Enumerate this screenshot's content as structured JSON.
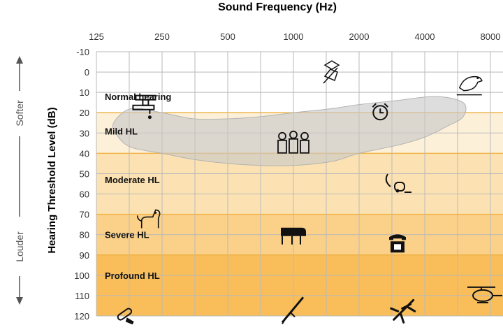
{
  "chart_data": {
    "type": "area",
    "title": "Sound Frequency (Hz)",
    "ylabel": "Hearing Threshold Level (dB)",
    "side_labels": {
      "top": "Softer",
      "bottom": "Louder"
    },
    "x_ticks": [
      "125",
      "250",
      "500",
      "1000",
      "2000",
      "4000",
      "8000"
    ],
    "x_scale": "log2",
    "y_ticks": [
      -10,
      0,
      10,
      20,
      30,
      40,
      50,
      60,
      70,
      80,
      90,
      100,
      110,
      120
    ],
    "ylim": [
      -10,
      120
    ],
    "y_inverted": true,
    "grid": true,
    "bands": [
      {
        "label": "Normal hearing",
        "from": -10,
        "to": 20,
        "color": "#ffffff"
      },
      {
        "label": "Mild HL",
        "from": 20,
        "to": 40,
        "color": "#fdf0d8"
      },
      {
        "label": "Moderate HL",
        "from": 40,
        "to": 70,
        "color": "#fce2b2"
      },
      {
        "label": "Severe HL",
        "from": 70,
        "to": 90,
        "color": "#fbd189"
      },
      {
        "label": "Profound HL",
        "from": 90,
        "to": 120,
        "color": "#f9be5a"
      }
    ],
    "band_border_color": "#f0b347",
    "speech_banana": {
      "color": "#c8c8c8",
      "points": [
        [
          150,
          25
        ],
        [
          180,
          18
        ],
        [
          250,
          20
        ],
        [
          350,
          23
        ],
        [
          500,
          23
        ],
        [
          700,
          22
        ],
        [
          1000,
          20
        ],
        [
          1500,
          18
        ],
        [
          2000,
          16
        ],
        [
          3000,
          14
        ],
        [
          4500,
          12
        ],
        [
          6000,
          15
        ],
        [
          6000,
          22
        ],
        [
          5000,
          27
        ],
        [
          4000,
          32
        ],
        [
          3000,
          36
        ],
        [
          2000,
          40
        ],
        [
          1500,
          44
        ],
        [
          1000,
          46
        ],
        [
          700,
          46
        ],
        [
          500,
          45
        ],
        [
          350,
          43
        ],
        [
          250,
          40
        ],
        [
          180,
          37
        ],
        [
          155,
          31
        ]
      ]
    },
    "sound_icons": [
      {
        "name": "dripping-faucet-icon",
        "freq": 210,
        "db": 15
      },
      {
        "name": "leaves-icon",
        "freq": 1500,
        "db": 0
      },
      {
        "name": "bird-icon",
        "freq": 6500,
        "db": 5
      },
      {
        "name": "alarm-clock-icon",
        "freq": 2500,
        "db": 20
      },
      {
        "name": "family-conversation-icon",
        "freq": 1000,
        "db": 35
      },
      {
        "name": "vacuum-cleaner-icon",
        "freq": 3000,
        "db": 55
      },
      {
        "name": "dog-icon",
        "freq": 220,
        "db": 72
      },
      {
        "name": "piano-icon",
        "freq": 1000,
        "db": 80
      },
      {
        "name": "telephone-icon",
        "freq": 3000,
        "db": 84
      },
      {
        "name": "helicopter-icon",
        "freq": 8000,
        "db": 110
      },
      {
        "name": "chainsaw-icon",
        "freq": 170,
        "db": 118
      },
      {
        "name": "rifle-icon",
        "freq": 1000,
        "db": 117
      },
      {
        "name": "airplane-icon",
        "freq": 3200,
        "db": 117
      }
    ]
  }
}
